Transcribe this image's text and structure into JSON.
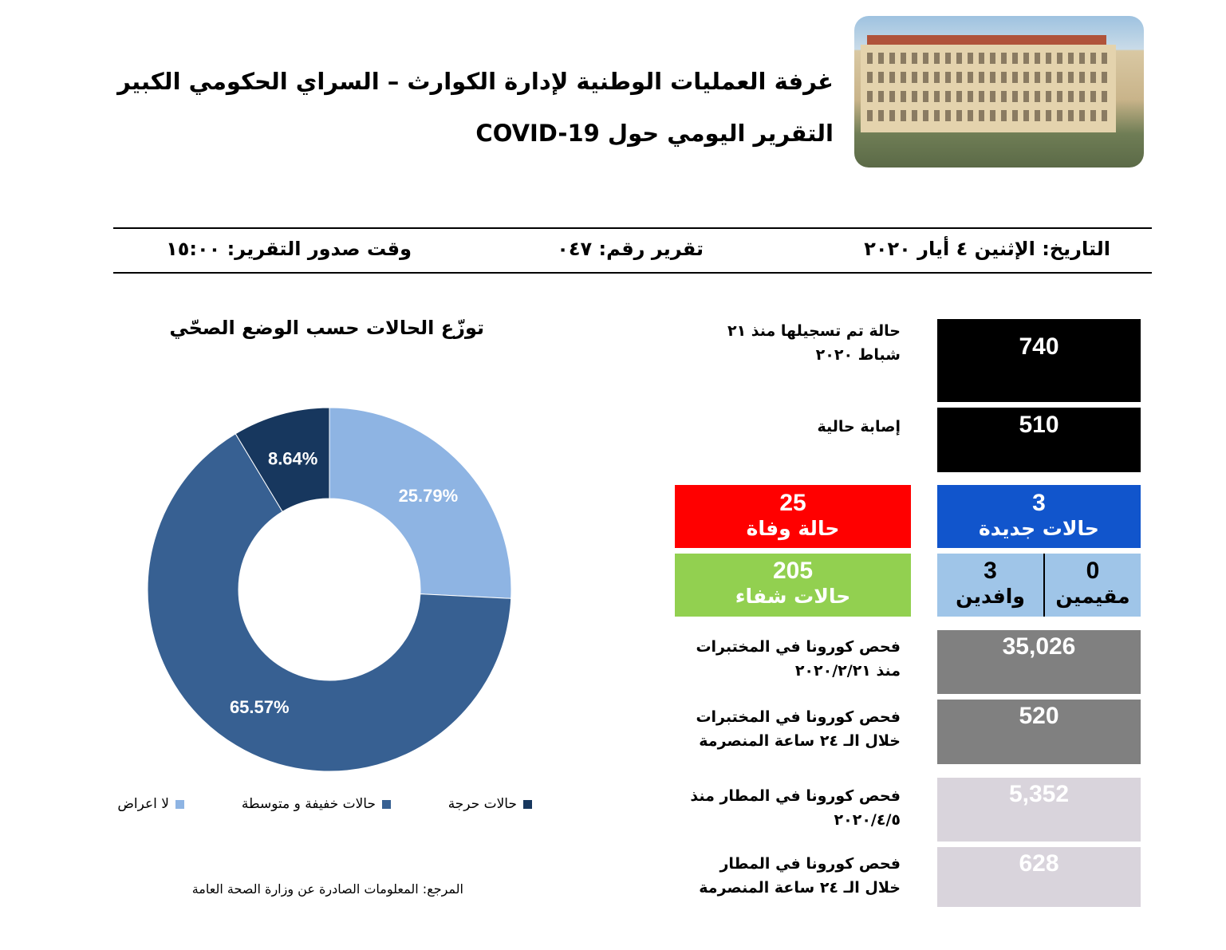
{
  "header": {
    "title_line1": "غرفة العمليات الوطنية لإدارة الكوارث – السراي الحكومي الكبير",
    "title_line2": "التقرير اليومي حول COVID-19"
  },
  "info_bar": {
    "date": "التاريخ: الإثنين ٤ أيار ٢٠٢٠",
    "report_number": "تقرير رقم: ٠٤٧",
    "report_time": "وقت صدور التقرير: ١٥:٠٠"
  },
  "stats": {
    "total_cases": {
      "value": "740",
      "label_line1": "حالة تم تسجيلها منذ ٢١",
      "label_line2": "شباط ٢٠٢٠"
    },
    "active_cases": {
      "value": "510",
      "label": "إصابة حالية"
    },
    "deaths": {
      "value": "25",
      "label": "حالة وفاة"
    },
    "new_cases": {
      "value": "3",
      "label": "حالات جديدة"
    },
    "recovered": {
      "value": "205",
      "label": "حالات شفاء"
    },
    "arrivals": {
      "value": "3",
      "label": "وافدين"
    },
    "residents": {
      "value": "0",
      "label": "مقيمين"
    },
    "lab_tests_total": {
      "value": "35,026",
      "label_line1": "فحص كورونا في المختبرات",
      "label_line2": "منذ ٢٠٢٠/٢/٢١"
    },
    "lab_tests_24h": {
      "value": "520",
      "label_line1": "فحص كورونا في المختبرات",
      "label_line2": "خلال الـ ٢٤ ساعة المنصرمة"
    },
    "airport_tests_total": {
      "value": "5,352",
      "label_line1": "فحص كورونا في المطار منذ",
      "label_line2": "٢٠٢٠/٤/٥"
    },
    "airport_tests_24h": {
      "value": "628",
      "label_line1": "فحص كورونا في المطار",
      "label_line2": "خلال الـ ٢٤ ساعة المنصرمة"
    }
  },
  "colors": {
    "black_box": "#000000",
    "red": "#ff0000",
    "blue": "#1155cc",
    "green": "#92d050",
    "light_blue": "#9fc5e8",
    "gray": "#808080",
    "light_gray": "#d9d4dc",
    "no_symptoms": "#8eb4e3",
    "mild": "#376092",
    "critical": "#17375e"
  },
  "chart_data": {
    "type": "pie",
    "title": "توزّع الحالات حسب الوضع الصحّي",
    "categories": [
      "لا اعراض",
      "حالات خفيفة و متوسطة",
      "حالات حرجة"
    ],
    "values": [
      25.79,
      65.57,
      8.64
    ],
    "value_labels": [
      "25.79%",
      "65.57%",
      "8.64%"
    ],
    "legend_position": "bottom",
    "donut": true
  },
  "footer": {
    "reference": "المرجع: المعلومات الصادرة عن وزارة الصحة العامة"
  }
}
